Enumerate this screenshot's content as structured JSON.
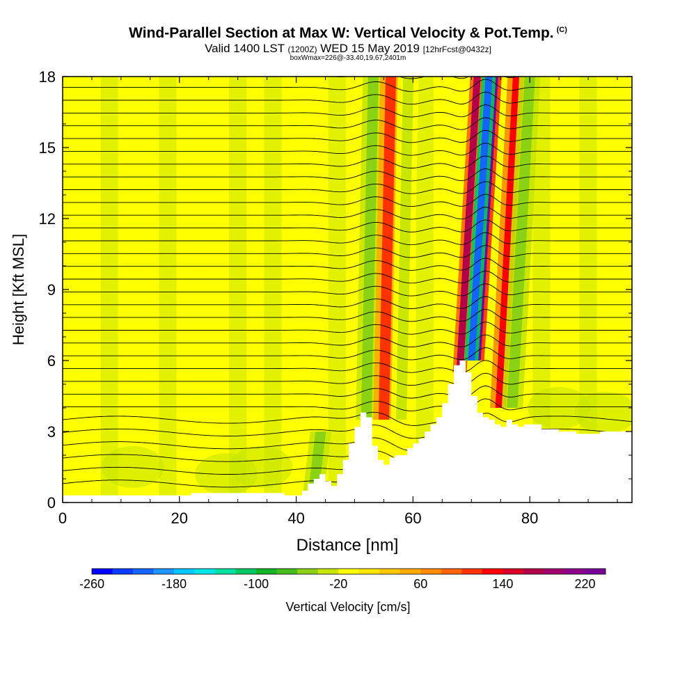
{
  "header": {
    "title": "Wind-Parallel Section at Max W: Vertical Velocity & Pot.Temp.",
    "copyright": "(C)",
    "valid_prefix": "Valid 1400 LST",
    "valid_utc": "(1200Z)",
    "valid_date": "WED 15 May 2019",
    "forecast": "[12hrFcst@0432z]",
    "box_info": "boxWmax=226@-33.40,19.67,2401m"
  },
  "chart_data": {
    "type": "heatmap",
    "title": "Wind-Parallel Section at Max W: Vertical Velocity & Pot.Temp.",
    "xlabel": "Distance [nm]",
    "ylabel": "Height [Kft MSL]",
    "xlim": [
      0,
      97.5
    ],
    "ylim": [
      0,
      18
    ],
    "x_ticks": [
      0,
      20,
      40,
      60,
      80
    ],
    "y_ticks": [
      0,
      3,
      6,
      9,
      12,
      15,
      18
    ],
    "colorbar": {
      "label": "Vertical Velocity [cm/s]",
      "min": -260,
      "max": 240,
      "step": 20,
      "tick_values": [
        -260,
        -180,
        -100,
        -20,
        60,
        140,
        220
      ],
      "colors": [
        "#0000ff",
        "#0a3cff",
        "#1464ff",
        "#1e96ff",
        "#00c8ff",
        "#00e6e6",
        "#00e0a0",
        "#00c864",
        "#14b428",
        "#46be1e",
        "#8cd214",
        "#c8e600",
        "#ffff00",
        "#ffe600",
        "#ffc800",
        "#ffaa00",
        "#ff8c00",
        "#ff6400",
        "#ff3200",
        "#ff0000",
        "#dc0028",
        "#b4004b",
        "#a0006e",
        "#8c008c",
        "#780096"
      ]
    },
    "terrain_profile": {
      "distance_nm": [
        0,
        5,
        10,
        15,
        20,
        22,
        25,
        28,
        32,
        35,
        38,
        40,
        41,
        42,
        43,
        44,
        45,
        46,
        47,
        48,
        49,
        50,
        51,
        52,
        53,
        54,
        55,
        56,
        57,
        58,
        59,
        60,
        61,
        62,
        63,
        64,
        65,
        66,
        67,
        68,
        69,
        70,
        71,
        72,
        73,
        74,
        75,
        76,
        77,
        78,
        79,
        80,
        82,
        85,
        88,
        90,
        92,
        94,
        96,
        97.5
      ],
      "height_kft": [
        0.3,
        0.3,
        0.3,
        0.3,
        0.3,
        0.4,
        0.4,
        0.4,
        0.4,
        0.4,
        0.3,
        0.3,
        0.5,
        0.8,
        1.0,
        1.2,
        0.9,
        0.7,
        1.2,
        1.8,
        2.5,
        3.2,
        3.8,
        3.6,
        2.4,
        1.8,
        1.6,
        1.9,
        2.0,
        2.0,
        2.3,
        2.5,
        2.7,
        3.0,
        3.3,
        3.6,
        4.2,
        5.0,
        5.8,
        6.0,
        5.5,
        4.5,
        3.8,
        3.6,
        3.5,
        3.3,
        3.2,
        3.5,
        3.3,
        3.2,
        3.3,
        3.3,
        3.1,
        3.0,
        2.9,
        2.9,
        3.0,
        3.0,
        3.0,
        2.9
      ]
    },
    "updraft_bands": [
      {
        "distance_nm": 43,
        "height_range_kft": [
          0.5,
          3.0
        ],
        "peak_cm_s": -60
      },
      {
        "distance_nm": 52,
        "height_range_kft": [
          3.5,
          18
        ],
        "peak_cm_s": -60
      },
      {
        "distance_nm": 55,
        "height_range_kft": [
          3.5,
          18
        ],
        "peak_cm_s": 100
      },
      {
        "distance_nm": 58,
        "height_range_kft": [
          3.5,
          18
        ],
        "peak_cm_s": -40
      },
      {
        "distance_nm": 68,
        "height_range_kft": [
          5.5,
          18
        ],
        "peak_cm_s": 160
      },
      {
        "distance_nm": 71,
        "height_range_kft": [
          6.0,
          18
        ],
        "peak_cm_s": 226
      },
      {
        "distance_nm": 70,
        "height_range_kft": [
          6.0,
          18
        ],
        "peak_cm_s": -220
      },
      {
        "distance_nm": 75,
        "height_range_kft": [
          4.0,
          18
        ],
        "peak_cm_s": 120
      },
      {
        "distance_nm": 77,
        "height_range_kft": [
          4.0,
          18
        ],
        "peak_cm_s": -60
      }
    ],
    "potential_temperature_isentropes": {
      "units": "degF",
      "contour_count": 33,
      "labels_readable": "illegible in source"
    }
  }
}
